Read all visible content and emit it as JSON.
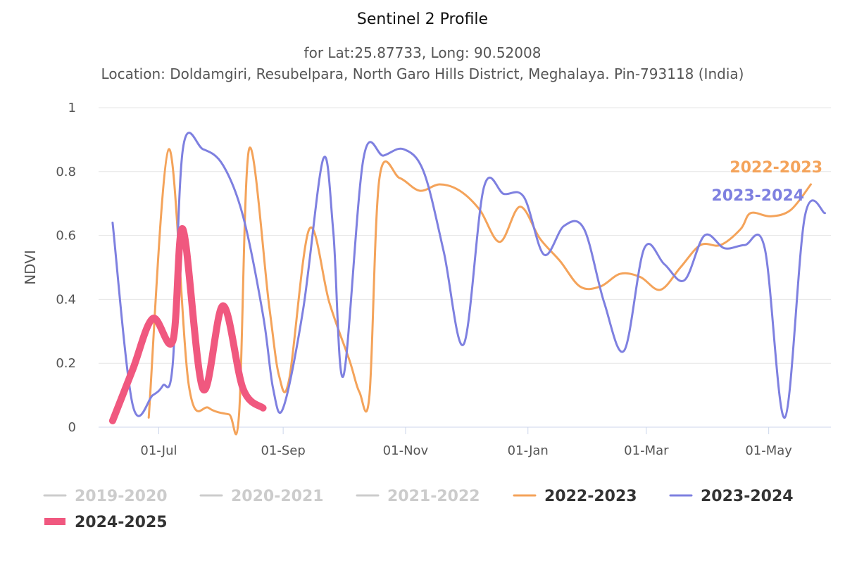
{
  "chart_data": {
    "type": "line",
    "title": "Sentinel 2 Profile",
    "subtitle_line1": "for Lat:25.87733, Long: 90.52008",
    "subtitle_line2": "Location: Doldamgiri, Resubelpara, North Garo Hills District, Meghalaya. Pin-793118 (India)",
    "ylabel": "NDVI",
    "xlabel": "",
    "ylim": [
      0,
      1
    ],
    "yticks": [
      "0",
      "0.2",
      "0.4",
      "0.6",
      "0.8",
      "1"
    ],
    "xticks": [
      "01-Jul",
      "01-Sep",
      "01-Nov",
      "01-Jan",
      "01-Mar",
      "01-May"
    ],
    "x_domain": [
      "01-Jun",
      "01-Jun"
    ],
    "grid": true,
    "legend_position": "bottom",
    "legend": [
      {
        "name": "2019-2020",
        "color": "#cccccc",
        "visible": false
      },
      {
        "name": "2020-2021",
        "color": "#cccccc",
        "visible": false
      },
      {
        "name": "2021-2022",
        "color": "#cccccc",
        "visible": false
      },
      {
        "name": "2022-2023",
        "color": "#f4a35a",
        "visible": true
      },
      {
        "name": "2023-2024",
        "color": "#7e80e0",
        "visible": true
      },
      {
        "name": "2024-2025",
        "color": "#f0587f",
        "visible": true
      }
    ],
    "series": [
      {
        "name": "2022-2023",
        "color": "#f4a35a",
        "width": 3,
        "end_label": "2022-2023",
        "points": [
          [
            "26-Jun",
            0.03
          ],
          [
            "06-Jul",
            0.87
          ],
          [
            "16-Jul",
            0.13
          ],
          [
            "26-Jul",
            0.06
          ],
          [
            "05-Aug",
            0.04
          ],
          [
            "10-Aug",
            0.04
          ],
          [
            "15-Aug",
            0.87
          ],
          [
            "25-Aug",
            0.38
          ],
          [
            "30-Aug",
            0.16
          ],
          [
            "04-Sep",
            0.15
          ],
          [
            "14-Sep",
            0.62
          ],
          [
            "24-Sep",
            0.39
          ],
          [
            "04-Oct",
            0.21
          ],
          [
            "09-Oct",
            0.11
          ],
          [
            "14-Oct",
            0.1
          ],
          [
            "19-Oct",
            0.78
          ],
          [
            "29-Oct",
            0.78
          ],
          [
            "08-Nov",
            0.74
          ],
          [
            "18-Nov",
            0.76
          ],
          [
            "28-Nov",
            0.74
          ],
          [
            "08-Dec",
            0.68
          ],
          [
            "18-Dec",
            0.58
          ],
          [
            "28-Dec",
            0.69
          ],
          [
            "07-Jan",
            0.59
          ],
          [
            "17-Jan",
            0.52
          ],
          [
            "27-Jan",
            0.44
          ],
          [
            "06-Feb",
            0.44
          ],
          [
            "16-Feb",
            0.48
          ],
          [
            "26-Feb",
            0.47
          ],
          [
            "08-Mar",
            0.43
          ],
          [
            "18-Mar",
            0.5
          ],
          [
            "28-Mar",
            0.57
          ],
          [
            "07-Apr",
            0.57
          ],
          [
            "17-Apr",
            0.62
          ],
          [
            "22-Apr",
            0.67
          ],
          [
            "02-May",
            0.66
          ],
          [
            "12-May",
            0.68
          ],
          [
            "22-May",
            0.76
          ]
        ]
      },
      {
        "name": "2023-2024",
        "color": "#7e80e0",
        "width": 3,
        "end_label": "2023-2024",
        "points": [
          [
            "08-Jun",
            0.64
          ],
          [
            "18-Jun",
            0.07
          ],
          [
            "28-Jun",
            0.1
          ],
          [
            "03-Jul",
            0.13
          ],
          [
            "08-Jul",
            0.2
          ],
          [
            "13-Jul",
            0.87
          ],
          [
            "23-Jul",
            0.87
          ],
          [
            "02-Aug",
            0.82
          ],
          [
            "12-Aug",
            0.66
          ],
          [
            "22-Aug",
            0.35
          ],
          [
            "27-Aug",
            0.12
          ],
          [
            "01-Sep",
            0.06
          ],
          [
            "11-Sep",
            0.37
          ],
          [
            "21-Sep",
            0.84
          ],
          [
            "26-Sep",
            0.61
          ],
          [
            "01-Oct",
            0.16
          ],
          [
            "11-Oct",
            0.84
          ],
          [
            "21-Oct",
            0.85
          ],
          [
            "31-Oct",
            0.87
          ],
          [
            "10-Nov",
            0.8
          ],
          [
            "20-Nov",
            0.55
          ],
          [
            "30-Nov",
            0.26
          ],
          [
            "10-Dec",
            0.75
          ],
          [
            "20-Dec",
            0.73
          ],
          [
            "30-Dec",
            0.72
          ],
          [
            "09-Jan",
            0.54
          ],
          [
            "19-Jan",
            0.63
          ],
          [
            "29-Jan",
            0.62
          ],
          [
            "08-Feb",
            0.39
          ],
          [
            "18-Feb",
            0.24
          ],
          [
            "28-Feb",
            0.56
          ],
          [
            "10-Mar",
            0.51
          ],
          [
            "20-Mar",
            0.46
          ],
          [
            "30-Mar",
            0.6
          ],
          [
            "09-Apr",
            0.56
          ],
          [
            "19-Apr",
            0.57
          ],
          [
            "29-Apr",
            0.56
          ],
          [
            "09-May",
            0.03
          ],
          [
            "19-May",
            0.66
          ],
          [
            "29-May",
            0.67
          ]
        ]
      },
      {
        "name": "2024-2025",
        "color": "#f0587f",
        "width": 10,
        "end_label": "",
        "points": [
          [
            "08-Jun",
            0.02
          ],
          [
            "18-Jun",
            0.18
          ],
          [
            "28-Jun",
            0.34
          ],
          [
            "08-Jul",
            0.27
          ],
          [
            "13-Jul",
            0.62
          ],
          [
            "23-Jul",
            0.12
          ],
          [
            "02-Aug",
            0.38
          ],
          [
            "12-Aug",
            0.12
          ],
          [
            "22-Aug",
            0.06
          ]
        ]
      }
    ]
  }
}
